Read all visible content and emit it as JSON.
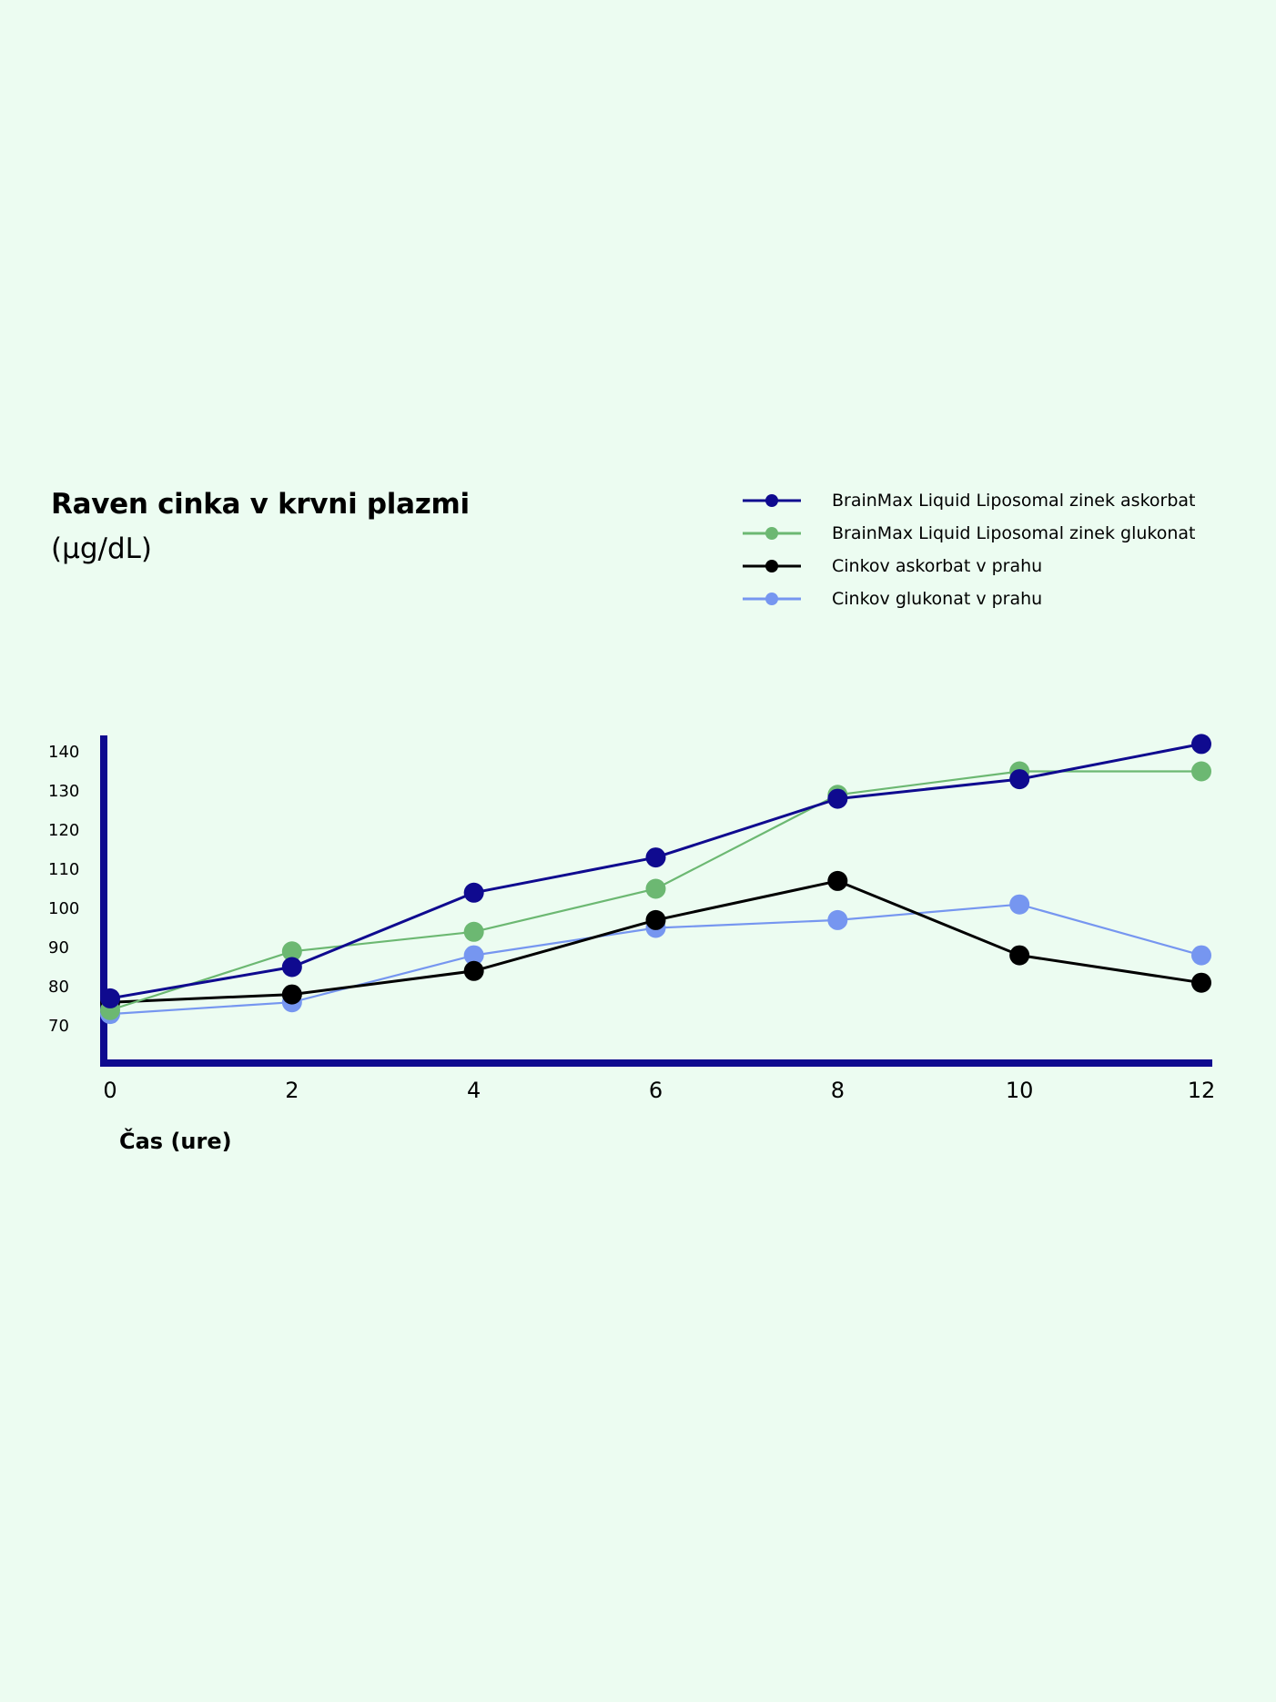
{
  "chart_data": {
    "type": "line",
    "title": "Raven cinka v krvni plazmi",
    "subtitle": "(µg/dL)",
    "xlabel": "Čas (ure)",
    "ylabel": "",
    "x": [
      0,
      2,
      4,
      6,
      8,
      10,
      12
    ],
    "xticks": [
      "0",
      "2",
      "4",
      "6",
      "8",
      "10",
      "12"
    ],
    "yticks": [
      "70",
      "80",
      "90",
      "100",
      "110",
      "120",
      "130",
      "140"
    ],
    "xlim": [
      0,
      12
    ],
    "ylim": [
      60,
      145
    ],
    "grid": false,
    "legend_position": "top-right",
    "series": [
      {
        "name": "BrainMax Liquid Liposomal zinek askorbat",
        "color": "#0f0a8f",
        "values": [
          77,
          85,
          104,
          113,
          128,
          133,
          142
        ]
      },
      {
        "name": "BrainMax Liquid Liposomal zinek glukonat",
        "color": "#6cb872",
        "values": [
          74,
          89,
          94,
          105,
          129,
          135,
          135
        ]
      },
      {
        "name": "Cinkov askorbat v prahu",
        "color": "#000000",
        "values": [
          76,
          78,
          84,
          97,
          107,
          88,
          81
        ]
      },
      {
        "name": "Cinkov glukonat v prahu",
        "color": "#7696f0",
        "values": [
          73,
          76,
          88,
          95,
          97,
          101,
          88
        ]
      }
    ],
    "axis_color": "#0f0a8f"
  }
}
